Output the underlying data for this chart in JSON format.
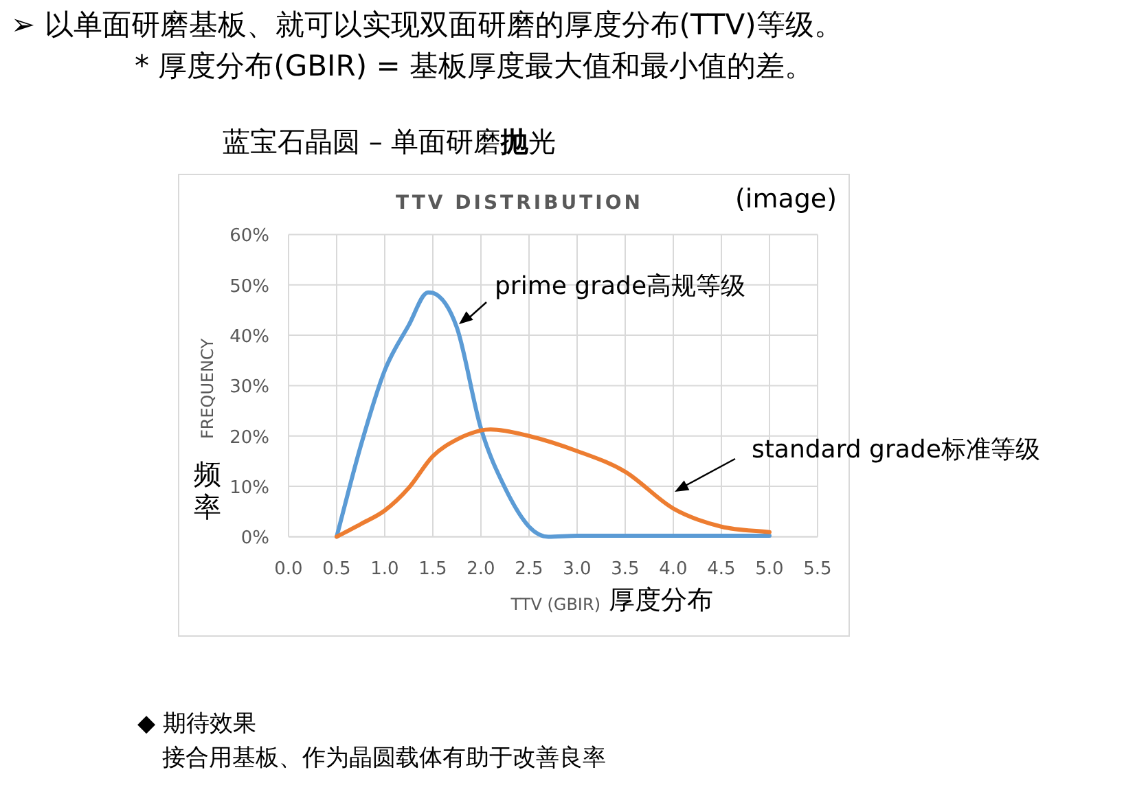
{
  "chart_data": {
    "type": "line",
    "title": "TTV DISTRIBUTION",
    "xlabel": "TTV (GBIR)",
    "ylabel": "FREQUENCY",
    "annotations": [
      "➢ 以单面研磨基板、就可以实现双面研磨的厚度分布(TTV)等级。",
      "* 厚度分布(GBIR) = 基板厚度最大值和最小值的差。",
      "蓝宝石晶圆 – 单面研磨**抛**光",
      "(image)",
      "频率",
      "厚度分布",
      "◆  期待效果",
      "接合用基板、作为晶圆载体有助于改善良率"
    ],
    "series": [
      {
        "name": "prime grade高规等级",
        "color": "#5b9bd5",
        "x": [
          0.5,
          0.75,
          1.0,
          1.25,
          1.45,
          1.5,
          1.75,
          2.0,
          2.25,
          2.5,
          2.7,
          3.0,
          3.5,
          4.0,
          4.5,
          5.0
        ],
        "values": [
          0,
          18,
          33,
          42,
          48.5,
          48.4,
          41.5,
          21.5,
          9.7,
          2,
          0,
          0.2,
          0.2,
          0.2,
          0.2,
          0.2
        ]
      },
      {
        "name": "standard grade标准等级",
        "color": "#ed7d31",
        "x": [
          0.5,
          0.75,
          1.0,
          1.25,
          1.5,
          1.75,
          2.0,
          2.1,
          2.5,
          3.0,
          3.5,
          4.0,
          4.5,
          5.0
        ],
        "values": [
          0,
          2.5,
          5.2,
          9.7,
          16,
          19.3,
          21.1,
          21.3,
          20,
          17,
          12.9,
          5.6,
          2,
          0.9
        ]
      }
    ],
    "xlim": [
      0,
      5.5
    ],
    "ylim": [
      0,
      60
    ],
    "xticks": [
      {
        "value": 0,
        "label": "0.0"
      },
      0.5,
      {
        "value": 1,
        "label": "1.0"
      },
      1.5,
      {
        "value": 2,
        "label": "2.0"
      },
      2.5,
      {
        "value": 3,
        "label": "3.0"
      },
      3.5,
      {
        "value": 4,
        "label": "4.0"
      },
      4.5,
      {
        "value": 5,
        "label": "5.0"
      },
      5.5
    ],
    "yticks": [
      {
        "value": 0,
        "label": "0%"
      },
      {
        "value": 10,
        "label": "10%"
      },
      {
        "value": 20,
        "label": "20%"
      },
      {
        "value": 30,
        "label": "30%"
      },
      {
        "value": 40,
        "label": "40%"
      },
      {
        "value": 50,
        "label": "50%"
      },
      {
        "value": 60,
        "label": "60%"
      }
    ],
    "grid": true,
    "marker": "none",
    "line_style": "solid"
  }
}
